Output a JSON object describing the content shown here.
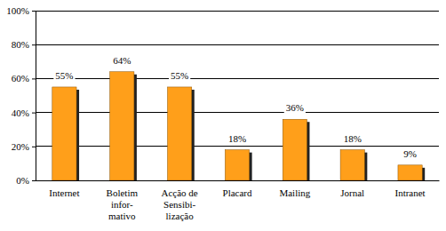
{
  "chart_data": {
    "type": "bar",
    "categories": [
      "Internet",
      "Boletim\ninfor-\nmativo",
      "Acção de\nSensibi-\nlização",
      "Placard",
      "Mailing",
      "Jornal",
      "Intranet"
    ],
    "values": [
      55,
      64,
      55,
      18,
      36,
      18,
      9
    ],
    "value_labels": [
      "55%",
      "64%",
      "55%",
      "18%",
      "36%",
      "18%",
      "9%"
    ],
    "color": "#ff9f1a",
    "ylim": [
      0,
      100
    ],
    "yticks": [
      {
        "value": 0,
        "label": "0%"
      },
      {
        "value": 20,
        "label": "20%"
      },
      {
        "value": 40,
        "label": "40%"
      },
      {
        "value": 60,
        "label": "60%"
      },
      {
        "value": 80,
        "label": "80%"
      },
      {
        "value": 100,
        "label": "100%"
      }
    ],
    "grid": true,
    "data_labels": true
  }
}
